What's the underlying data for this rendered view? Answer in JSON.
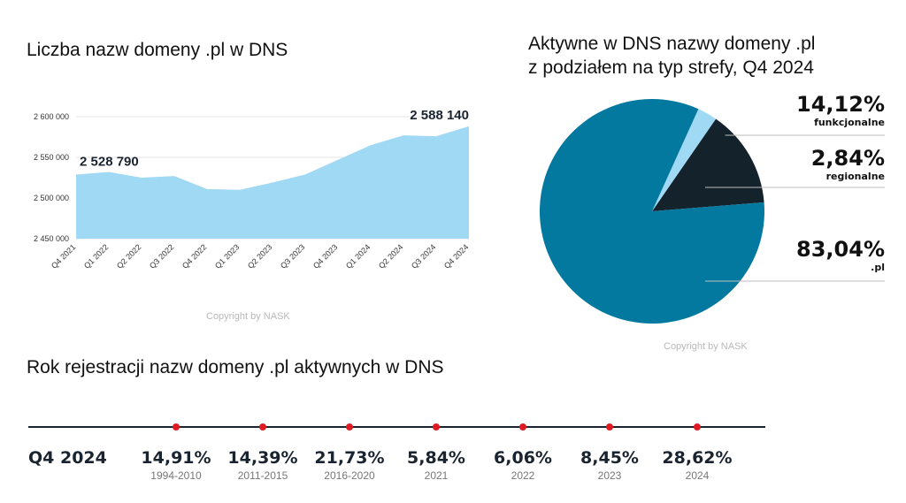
{
  "area_chart": {
    "title": "Liczba nazw domeny .pl w DNS",
    "copyright": "Copyright by NASK",
    "y_ticks": [
      "2 600 000",
      "2 550 000",
      "2 500 000",
      "2 450 000"
    ],
    "start_label": "2 528 790",
    "end_label": "2 588 140",
    "colors": {
      "fill": "#9fd9f4",
      "label": "#1a2430"
    }
  },
  "pie_chart": {
    "title_line1": "Aktywne w DNS nazwy domeny .pl",
    "title_line2": "z podziałem na typ strefy, Q4 2024",
    "copyright": "Copyright by NASK",
    "slices": [
      {
        "pct": "14,12%",
        "label": "funkcjonalne",
        "value": 14.12,
        "color": "#14222c"
      },
      {
        "pct": "2,84%",
        "label": "regionalne",
        "value": 2.84,
        "color": "#9fd9f4"
      },
      {
        "pct": "83,04%",
        "label": ".pl",
        "value": 83.04,
        "color": "#04799f"
      }
    ]
  },
  "timeline": {
    "title": "Rok rejestracji nazw domeny .pl aktywnych w DNS",
    "period": "Q4 2024",
    "items": [
      {
        "pct": "14,91%",
        "year": "1994-2010"
      },
      {
        "pct": "14,39%",
        "year": "2011-2015"
      },
      {
        "pct": "21,73%",
        "year": "2016-2020"
      },
      {
        "pct": "5,84%",
        "year": "2021"
      },
      {
        "pct": "6,06%",
        "year": "2022"
      },
      {
        "pct": "8,45%",
        "year": "2023"
      },
      {
        "pct": "28,62%",
        "year": "2024"
      }
    ],
    "colors": {
      "line": "#1a2430",
      "dot": "#e01a22"
    }
  },
  "chart_data": [
    {
      "type": "area",
      "title": "Liczba nazw domeny .pl w DNS",
      "categories": [
        "Q4 2021",
        "Q1 2022",
        "Q2 2022",
        "Q3 2022",
        "Q4 2022",
        "Q1 2023",
        "Q2 2023",
        "Q3 2023",
        "Q4 2023",
        "Q1 2024",
        "Q2 2024",
        "Q3 2024",
        "Q4 2024"
      ],
      "values": [
        2528790,
        2532000,
        2525000,
        2527000,
        2511000,
        2510000,
        2519000,
        2529000,
        2547000,
        2565000,
        2577000,
        2576000,
        2588140
      ],
      "ylim": [
        2450000,
        2600000
      ],
      "grid": true
    },
    {
      "type": "pie",
      "title": "Aktywne w DNS nazwy domeny .pl z podziałem na typ strefy, Q4 2024",
      "labels": [
        "funkcjonalne",
        "regionalne",
        ".pl"
      ],
      "values": [
        14.12,
        2.84,
        83.04
      ]
    }
  ]
}
